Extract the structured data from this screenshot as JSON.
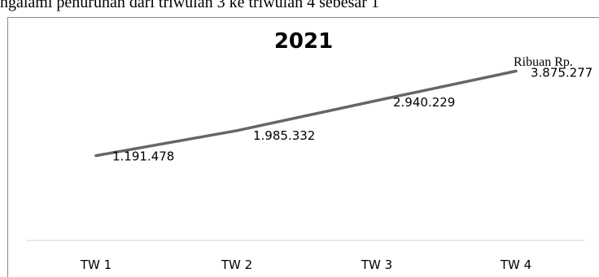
{
  "header_text": "ngalami penurunan dari triwulan 3 ke triwulan 4 sebesar  1",
  "chart_data": {
    "type": "line",
    "title": "2021",
    "unit_label": "Ribuan Rp.",
    "categories": [
      "TW 1",
      "TW 2",
      "TW 3",
      "TW 4"
    ],
    "values": [
      1191478,
      1985332,
      2940229,
      3875277
    ],
    "data_labels": [
      "1.191.478",
      "1.985.332",
      "2.940.229",
      "3.875.277"
    ],
    "ylim": [
      -1500000,
      5100000
    ],
    "line_color": "#666666",
    "grid": false,
    "legend": "none"
  }
}
